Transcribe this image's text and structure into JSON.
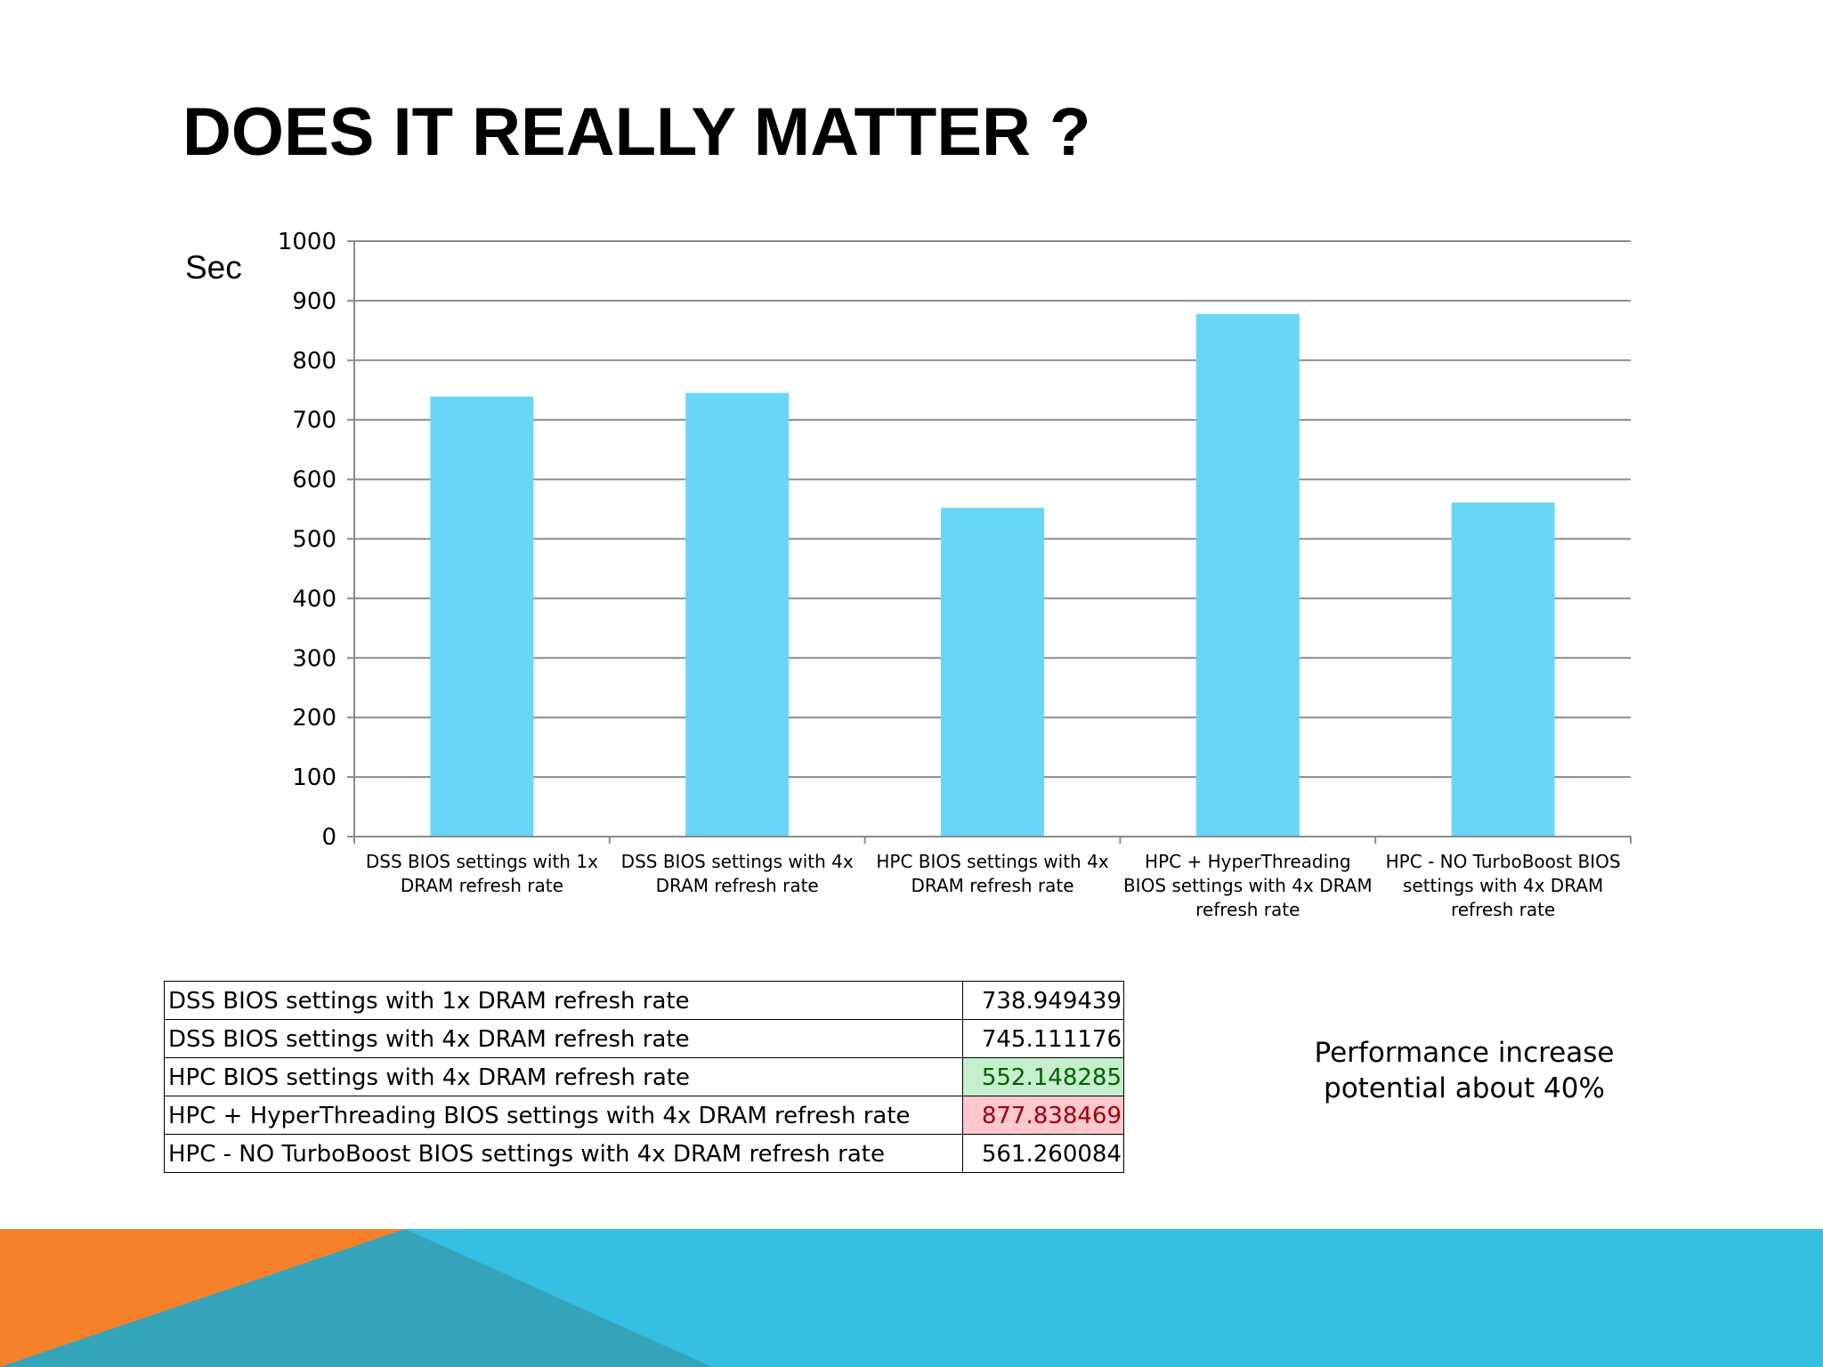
{
  "slide": {
    "title": "DOES IT REALLY MATTER ?",
    "note": "Performance increase potential about 40%"
  },
  "chart_data": {
    "type": "bar",
    "ylabel": "Sec",
    "xlabel": "",
    "ylim": [
      0,
      1000
    ],
    "yticks": [
      0,
      100,
      200,
      300,
      400,
      500,
      600,
      700,
      800,
      900,
      1000
    ],
    "grid": true,
    "bar_color": "#68d6f7",
    "categories": [
      "DSS BIOS settings with 1x DRAM refresh rate",
      "DSS BIOS settings with 4x DRAM refresh rate",
      "HPC BIOS settings with 4x DRAM refresh rate",
      "HPC + HyperThreading BIOS settings with 4x DRAM refresh rate",
      "HPC - NO TurboBoost BIOS settings with 4x DRAM refresh rate"
    ],
    "values": [
      738.949439,
      745.111176,
      552.148285,
      877.838469,
      561.260084
    ]
  },
  "table": {
    "rows": [
      {
        "label": "DSS BIOS settings with 1x DRAM refresh rate",
        "value": "738.949439"
      },
      {
        "label": "DSS BIOS settings with 4x DRAM refresh rate",
        "value": "745.111176"
      },
      {
        "label": "HPC BIOS settings with 4x DRAM refresh rate",
        "value": "552.148285"
      },
      {
        "label": "HPC + HyperThreading BIOS settings with 4x DRAM refresh rate",
        "value": "877.838469"
      },
      {
        "label": "HPC - NO TurboBoost BIOS settings with 4x DRAM refresh rate",
        "value": "561.260084"
      }
    ]
  },
  "colors": {
    "accent_orange": "#f6812a",
    "accent_blue": "#36bee3",
    "accent_teal": "#33a4b9",
    "good_fill": "#c6efce",
    "bad_fill": "#ffc7ce"
  }
}
